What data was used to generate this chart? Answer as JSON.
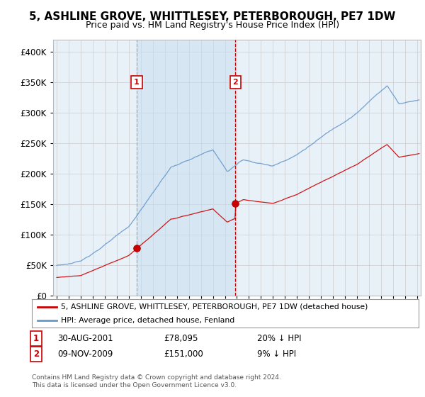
{
  "title": "5, ASHLINE GROVE, WHITTLESEY, PETERBOROUGH, PE7 1DW",
  "subtitle": "Price paid vs. HM Land Registry's House Price Index (HPI)",
  "ylim": [
    0,
    420000
  ],
  "yticks": [
    0,
    50000,
    100000,
    150000,
    200000,
    250000,
    300000,
    350000,
    400000
  ],
  "xlim_start": 1994.7,
  "xlim_end": 2025.3,
  "sale_dates": [
    2001.66,
    2009.87
  ],
  "sale_prices": [
    78095,
    151000
  ],
  "sale_labels": [
    "1",
    "2"
  ],
  "vline1_color": "#aaaaaa",
  "vline2_color": "#cc0000",
  "shade_color": "#ddeeff",
  "sale_dot_color": "#cc0000",
  "hpi_line_color": "#6699cc",
  "price_line_color": "#cc0000",
  "legend_line1": "5, ASHLINE GROVE, WHITTLESEY, PETERBOROUGH, PE7 1DW (detached house)",
  "legend_line2": "HPI: Average price, detached house, Fenland",
  "table_row1": [
    "1",
    "30-AUG-2001",
    "£78,095",
    "20% ↓ HPI"
  ],
  "table_row2": [
    "2",
    "09-NOV-2009",
    "£151,000",
    "9% ↓ HPI"
  ],
  "footnote": "Contains HM Land Registry data © Crown copyright and database right 2024.\nThis data is licensed under the Open Government Licence v3.0.",
  "grid_color": "#cccccc",
  "title_fontsize": 11,
  "subtitle_fontsize": 9
}
